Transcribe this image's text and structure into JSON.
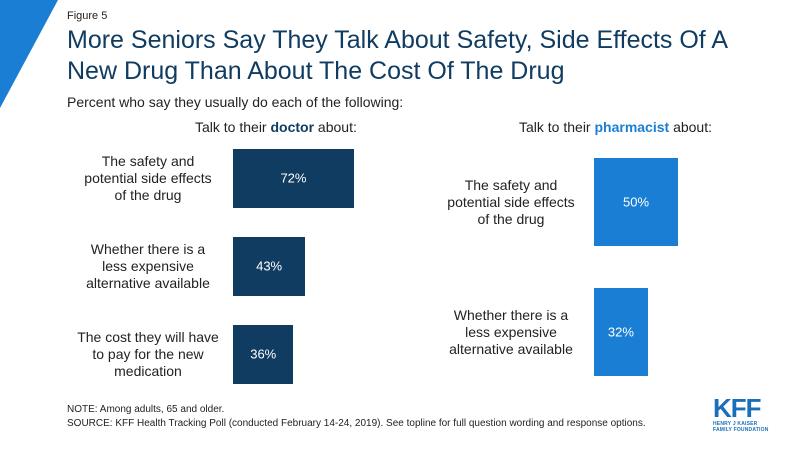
{
  "figure_label": "Figure 5",
  "title": "More Seniors Say They Talk About Safety, Side Effects Of A New Drug Than About The Cost Of The Drug",
  "subtitle": "Percent who say they usually do each of the following:",
  "colors": {
    "doctor": "#103c62",
    "pharmacist": "#1a7fd4",
    "accent_corner": "#1a7fd4"
  },
  "chart_data": [
    {
      "type": "bar",
      "orientation": "horizontal",
      "title_prefix": "Talk to their ",
      "title_keyword": "doctor",
      "title_suffix": " about:",
      "categories": [
        "The safety and potential side effects of the drug",
        "Whether there is a less expensive alternative available",
        "The cost they will have to pay for the new medication"
      ],
      "category_lines": [
        [
          "The safety and",
          "potential side effects",
          "of the drug"
        ],
        [
          "Whether there is a",
          "less expensive",
          "alternative available"
        ],
        [
          "The cost they will have",
          "to pay for the new",
          "medication"
        ]
      ],
      "values": [
        72,
        43,
        36
      ],
      "value_labels": [
        "72%",
        "43%",
        "36%"
      ],
      "unit": "%",
      "xlim": [
        0,
        100
      ],
      "grid": false
    },
    {
      "type": "bar",
      "orientation": "horizontal",
      "title_prefix": "Talk to their ",
      "title_keyword": "pharmacist",
      "title_suffix": " about:",
      "categories": [
        "The safety and potential side effects of the drug",
        "Whether there is a less expensive alternative available"
      ],
      "category_lines": [
        [
          "The safety and",
          "potential side effects",
          "of the drug"
        ],
        [
          "Whether there is a",
          "less expensive",
          "alternative available"
        ]
      ],
      "values": [
        50,
        32
      ],
      "value_labels": [
        "50%",
        "32%"
      ],
      "unit": "%",
      "xlim": [
        0,
        100
      ],
      "grid": false
    }
  ],
  "notes": {
    "note": "NOTE: Among adults, 65 and older.",
    "source": "SOURCE: KFF Health Tracking Poll (conducted February 14-24, 2019). See topline for full question wording and response options."
  },
  "logo": {
    "word": "KFF",
    "sub_line1": "HENRY J KAISER",
    "sub_line2": "FAMILY FOUNDATION"
  }
}
